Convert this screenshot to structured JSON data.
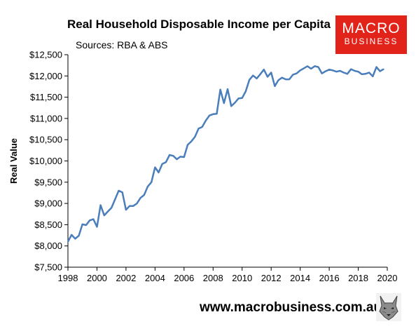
{
  "branding": {
    "logo_line1": "MACRO",
    "logo_line2": "BUSINESS",
    "website": "www.macrobusiness.com.au",
    "logo_color": "#e2231a",
    "mascot_icon": "wolf-head-icon"
  },
  "chart_data": {
    "type": "line",
    "title": "Real Household Disposable Income per Capita",
    "subtitle": "Sources: RBA & ABS",
    "ylabel": "Real Value",
    "xlabel": "",
    "xlim": [
      1998,
      2020
    ],
    "ylim": [
      7500,
      12500
    ],
    "x_ticks": [
      "1998",
      "2000",
      "2002",
      "2004",
      "2006",
      "2008",
      "2010",
      "2012",
      "2014",
      "2016",
      "2018",
      "2020"
    ],
    "y_ticks": [
      "$7,500",
      "$8,000",
      "$8,500",
      "$9,000",
      "$9,500",
      "$10,000",
      "$10,500",
      "$11,000",
      "$11,500",
      "$12,000",
      "$12,500"
    ],
    "grid": false,
    "line_color": "#4a7ebb",
    "series": [
      {
        "values": [
          [
            1998.0,
            8100
          ],
          [
            1998.25,
            8260
          ],
          [
            1998.5,
            8170
          ],
          [
            1998.75,
            8240
          ],
          [
            1999.0,
            8510
          ],
          [
            1999.25,
            8490
          ],
          [
            1999.5,
            8600
          ],
          [
            1999.75,
            8630
          ],
          [
            2000.0,
            8450
          ],
          [
            2000.25,
            8960
          ],
          [
            2000.5,
            8720
          ],
          [
            2000.75,
            8810
          ],
          [
            2001.0,
            8900
          ],
          [
            2001.25,
            9100
          ],
          [
            2001.5,
            9300
          ],
          [
            2001.75,
            9260
          ],
          [
            2002.0,
            8850
          ],
          [
            2002.25,
            8940
          ],
          [
            2002.5,
            8940
          ],
          [
            2002.75,
            9000
          ],
          [
            2003.0,
            9130
          ],
          [
            2003.25,
            9200
          ],
          [
            2003.5,
            9400
          ],
          [
            2003.75,
            9500
          ],
          [
            2004.0,
            9850
          ],
          [
            2004.25,
            9730
          ],
          [
            2004.5,
            9930
          ],
          [
            2004.75,
            9970
          ],
          [
            2005.0,
            10140
          ],
          [
            2005.25,
            10120
          ],
          [
            2005.5,
            10040
          ],
          [
            2005.75,
            10100
          ],
          [
            2006.0,
            10090
          ],
          [
            2006.25,
            10380
          ],
          [
            2006.5,
            10460
          ],
          [
            2006.75,
            10570
          ],
          [
            2007.0,
            10760
          ],
          [
            2007.25,
            10800
          ],
          [
            2007.5,
            10950
          ],
          [
            2007.75,
            11070
          ],
          [
            2008.0,
            11100
          ],
          [
            2008.25,
            11110
          ],
          [
            2008.5,
            11680
          ],
          [
            2008.75,
            11360
          ],
          [
            2009.0,
            11690
          ],
          [
            2009.25,
            11290
          ],
          [
            2009.5,
            11370
          ],
          [
            2009.75,
            11470
          ],
          [
            2010.0,
            11480
          ],
          [
            2010.25,
            11640
          ],
          [
            2010.5,
            11910
          ],
          [
            2010.75,
            12010
          ],
          [
            2011.0,
            11940
          ],
          [
            2011.25,
            12040
          ],
          [
            2011.5,
            12150
          ],
          [
            2011.75,
            11980
          ],
          [
            2012.0,
            12080
          ],
          [
            2012.25,
            11760
          ],
          [
            2012.5,
            11900
          ],
          [
            2012.75,
            11960
          ],
          [
            2013.0,
            11920
          ],
          [
            2013.25,
            11920
          ],
          [
            2013.5,
            12030
          ],
          [
            2013.75,
            12060
          ],
          [
            2014.0,
            12130
          ],
          [
            2014.25,
            12180
          ],
          [
            2014.5,
            12230
          ],
          [
            2014.75,
            12170
          ],
          [
            2015.0,
            12230
          ],
          [
            2015.25,
            12210
          ],
          [
            2015.5,
            12060
          ],
          [
            2015.75,
            12110
          ],
          [
            2016.0,
            12150
          ],
          [
            2016.25,
            12130
          ],
          [
            2016.5,
            12100
          ],
          [
            2016.75,
            12120
          ],
          [
            2017.0,
            12080
          ],
          [
            2017.25,
            12050
          ],
          [
            2017.5,
            12160
          ],
          [
            2017.75,
            12120
          ],
          [
            2018.0,
            12100
          ],
          [
            2018.25,
            12040
          ],
          [
            2018.5,
            12050
          ],
          [
            2018.75,
            12080
          ],
          [
            2019.0,
            11990
          ],
          [
            2019.25,
            12210
          ],
          [
            2019.5,
            12110
          ],
          [
            2019.75,
            12160
          ]
        ]
      }
    ]
  }
}
